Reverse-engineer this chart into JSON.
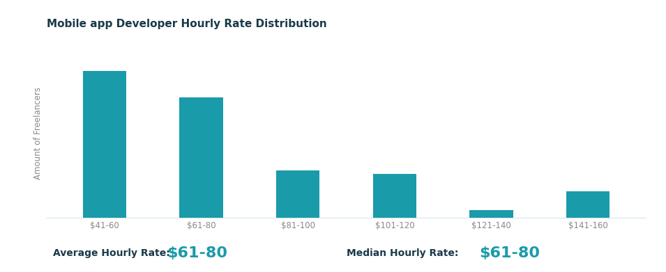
{
  "title": "Mobile app Developer Hourly Rate Distribution",
  "categories": [
    "$41-60",
    "$61-80",
    "$81-100",
    "$101-120",
    "$121-140",
    "$141-160"
  ],
  "values": [
    100,
    82,
    32,
    30,
    5,
    18
  ],
  "bar_color": "#1a9baa",
  "ylabel": "Amount of Freelancers",
  "background_color": "#ffffff",
  "grid_color": "#d5e8f0",
  "title_color": "#1a3a4a",
  "tick_color": "#888888",
  "avg_label": "Average Hourly Rate:",
  "avg_value": "$61-80",
  "med_label": "Median Hourly Rate:",
  "med_value": "$61-80",
  "stat_value_color": "#1a9baa",
  "stat_label_color": "#1a3a4a",
  "ylim": [
    0,
    115
  ]
}
